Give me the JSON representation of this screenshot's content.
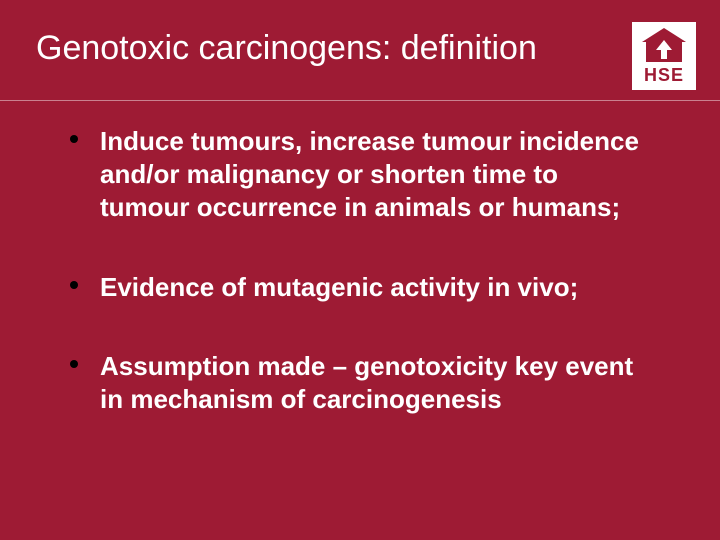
{
  "slide": {
    "title": "Genotoxic carcinogens: definition",
    "background_color": "#9e1b34",
    "title_color": "#ffffff",
    "title_fontsize": 34,
    "divider_color": "rgba(255,255,255,0.45)",
    "bullets": [
      {
        "text": "Induce tumours, increase tumour incidence and/or malignancy or shorten time to tumour occurrence in animals or humans;"
      },
      {
        "text": "Evidence of mutagenic activity in vivo;"
      },
      {
        "text": "Assumption made – genotoxicity key event in mechanism of carcinogenesis"
      }
    ],
    "bullet_color": "#000000",
    "bullet_text_color": "#ffffff",
    "bullet_fontsize": 26,
    "bullet_fontweight": 700
  },
  "logo": {
    "text": "HSE",
    "bg_color": "#ffffff",
    "fg_color": "#9e1b34"
  }
}
